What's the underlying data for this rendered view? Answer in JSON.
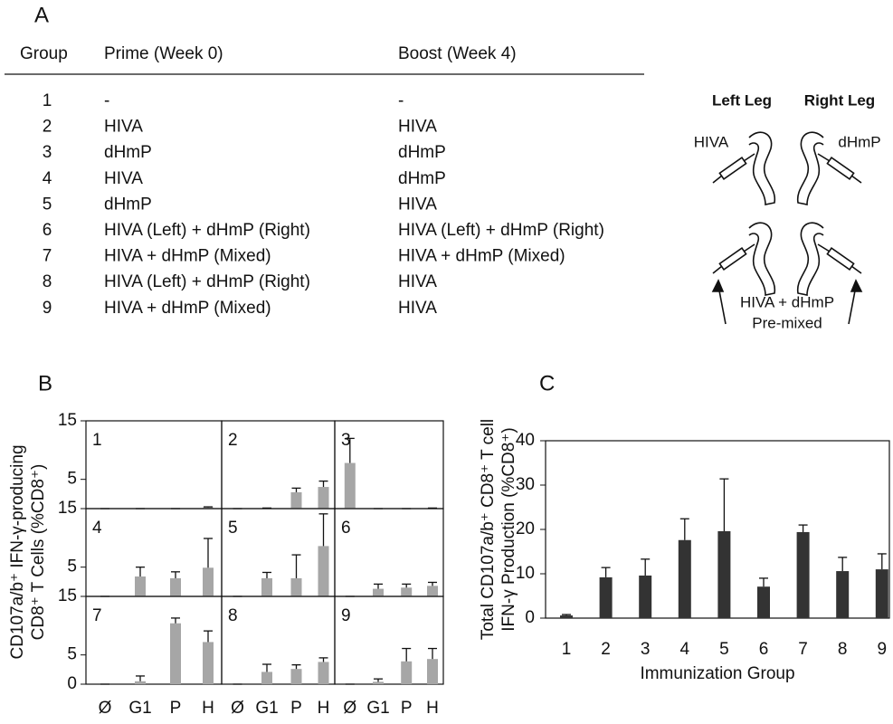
{
  "panel_a": {
    "label": "A",
    "table": {
      "header": [
        "Group",
        "Prime (Week 0)",
        "Boost (Week 4)"
      ],
      "rows": [
        [
          "1",
          "-",
          "-"
        ],
        [
          "2",
          "HIVA",
          "HIVA"
        ],
        [
          "3",
          "dHmP",
          "dHmP"
        ],
        [
          "4",
          "HIVA",
          "dHmP"
        ],
        [
          "5",
          "dHmP",
          "HIVA"
        ],
        [
          "6",
          "HIVA (Left) + dHmP (Right)",
          "HIVA (Left) + dHmP (Right)"
        ],
        [
          "7",
          "HIVA + dHmP (Mixed)",
          "HIVA + dHmP (Mixed)"
        ],
        [
          "8",
          "HIVA (Left) + dHmP (Right)",
          "HIVA"
        ],
        [
          "9",
          "HIVA + dHmP (Mixed)",
          "HIVA"
        ]
      ]
    },
    "diagram": {
      "left_leg": "Left Leg",
      "right_leg": "Right Leg",
      "left_vaccine": "HIVA",
      "right_vaccine": "dHmP",
      "mixed": "HIVA + dHmP",
      "mixed_note": "Pre-mixed"
    }
  },
  "chart_data": [
    {
      "type": "bar",
      "label": "B",
      "ylabel": [
        "CD107a/b⁺ IFN-γ-producing",
        "CD8⁺ T Cells (%CD8⁺)"
      ],
      "categories": [
        "Ø",
        "G1",
        "P",
        "H"
      ],
      "ylim": [
        0,
        15
      ],
      "yticks": [
        0,
        5,
        15
      ],
      "color": "#a6a6a6",
      "panels": [
        {
          "name": "1",
          "values": [
            0,
            0,
            0,
            0.2
          ],
          "errors": [
            0,
            0,
            0,
            0.1
          ]
        },
        {
          "name": "2",
          "values": [
            0,
            0.1,
            2.8,
            3.7
          ],
          "errors": [
            0,
            0,
            0.7,
            1.0
          ]
        },
        {
          "name": "3",
          "values": [
            7.8,
            0,
            0,
            0.1
          ],
          "errors": [
            4.2,
            0,
            0,
            0
          ]
        },
        {
          "name": "4",
          "values": [
            0,
            3.4,
            3.1,
            4.9
          ],
          "errors": [
            0,
            1.6,
            1.1,
            5.0
          ]
        },
        {
          "name": "5",
          "values": [
            0,
            3.1,
            3.1,
            8.6
          ],
          "errors": [
            0,
            1.0,
            4.0,
            5.5
          ]
        },
        {
          "name": "6",
          "values": [
            0,
            1.3,
            1.5,
            1.8
          ],
          "errors": [
            0,
            0.8,
            0.6,
            0.6
          ]
        },
        {
          "name": "7",
          "values": [
            0,
            0.5,
            10.4,
            7.2
          ],
          "errors": [
            0,
            0.9,
            0.9,
            1.9
          ]
        },
        {
          "name": "8",
          "values": [
            0,
            2.1,
            2.6,
            3.8
          ],
          "errors": [
            0,
            1.3,
            0.7,
            0.7
          ]
        },
        {
          "name": "9",
          "values": [
            0,
            0.4,
            3.9,
            4.3
          ],
          "errors": [
            0,
            0.5,
            2.2,
            1.8
          ]
        }
      ]
    },
    {
      "type": "bar",
      "label": "C",
      "ylabel": [
        "Total CD107a/b⁺ CD8⁺ T cell",
        "IFN-γ Production (%CD8⁺)"
      ],
      "xlabel": "Immunization Group",
      "categories": [
        "1",
        "2",
        "3",
        "4",
        "5",
        "6",
        "7",
        "8",
        "9"
      ],
      "values": [
        0.6,
        9.2,
        9.6,
        17.6,
        19.6,
        7.1,
        19.4,
        10.6,
        11.0
      ],
      "errors": [
        0.2,
        2.2,
        3.7,
        4.8,
        11.8,
        1.9,
        1.6,
        3.1,
        3.5
      ],
      "color": "#333333",
      "ylim": [
        0,
        40
      ],
      "yticks": [
        0,
        10,
        20,
        30,
        40
      ]
    }
  ]
}
